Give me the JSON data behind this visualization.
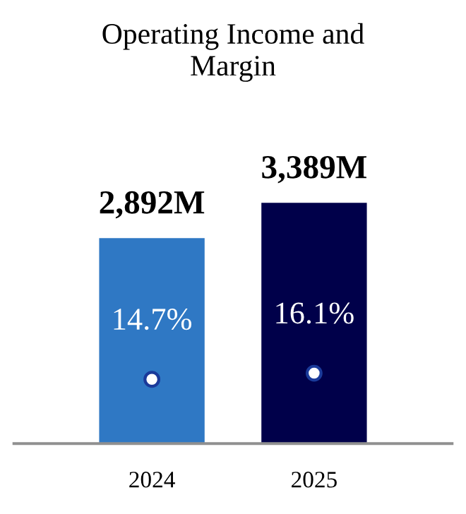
{
  "chart_data": {
    "type": "bar",
    "title": "Operating Income and\nMargin",
    "categories": [
      "2024",
      "2025"
    ],
    "series": [
      {
        "colors": [
          "#2f78c4",
          "#00004a"
        ],
        "values": [
          2892,
          3389
        ],
        "value_labels": [
          "2,892M",
          "3,389M"
        ]
      },
      {
        "type": "scatter",
        "axis": "y2",
        "color": "#ffffff",
        "values": [
          14.7,
          16.1
        ],
        "value_labels": [
          "14.7%",
          "16.1%"
        ]
      }
    ],
    "grid": false,
    "legend": false,
    "marker": "circle"
  }
}
